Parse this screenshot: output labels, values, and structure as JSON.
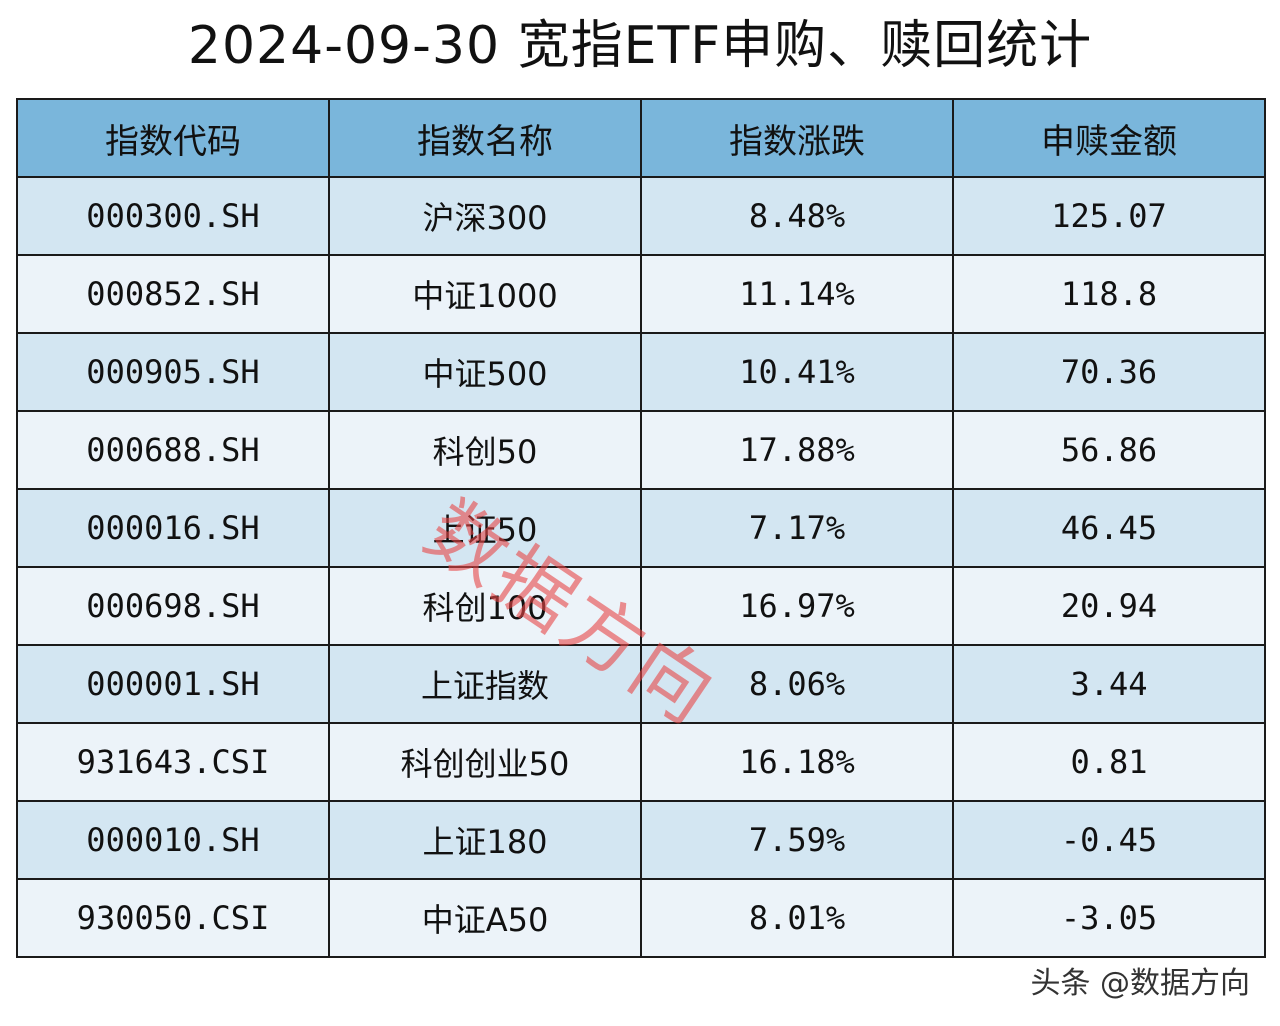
{
  "title": "2024-09-30 宽指ETF申购、赎回统计",
  "columns": [
    "指数代码",
    "指数名称",
    "指数涨跌",
    "申赎金额"
  ],
  "rows": [
    [
      "000300.SH",
      "沪深300",
      "8.48%",
      "125.07"
    ],
    [
      "000852.SH",
      "中证1000",
      "11.14%",
      "118.8"
    ],
    [
      "000905.SH",
      "中证500",
      "10.41%",
      "70.36"
    ],
    [
      "000688.SH",
      "科创50",
      "17.88%",
      "56.86"
    ],
    [
      "000016.SH",
      "上证50",
      "7.17%",
      "46.45"
    ],
    [
      "000698.SH",
      "科创100",
      "16.97%",
      "20.94"
    ],
    [
      "000001.SH",
      "上证指数",
      "8.06%",
      "3.44"
    ],
    [
      "931643.CSI",
      "科创创业50",
      "16.18%",
      "0.81"
    ],
    [
      "000010.SH",
      "上证180",
      "7.59%",
      "-0.45"
    ],
    [
      "930050.CSI",
      "中证A50",
      "8.01%",
      "-3.05"
    ]
  ],
  "watermark": "数据方向",
  "footer": "头条 @数据方向",
  "colors": {
    "header_bg": "#7ab6db",
    "row_odd": "#d3e6f2",
    "row_even": "#ecf3f9",
    "watermark": "#e84646"
  }
}
